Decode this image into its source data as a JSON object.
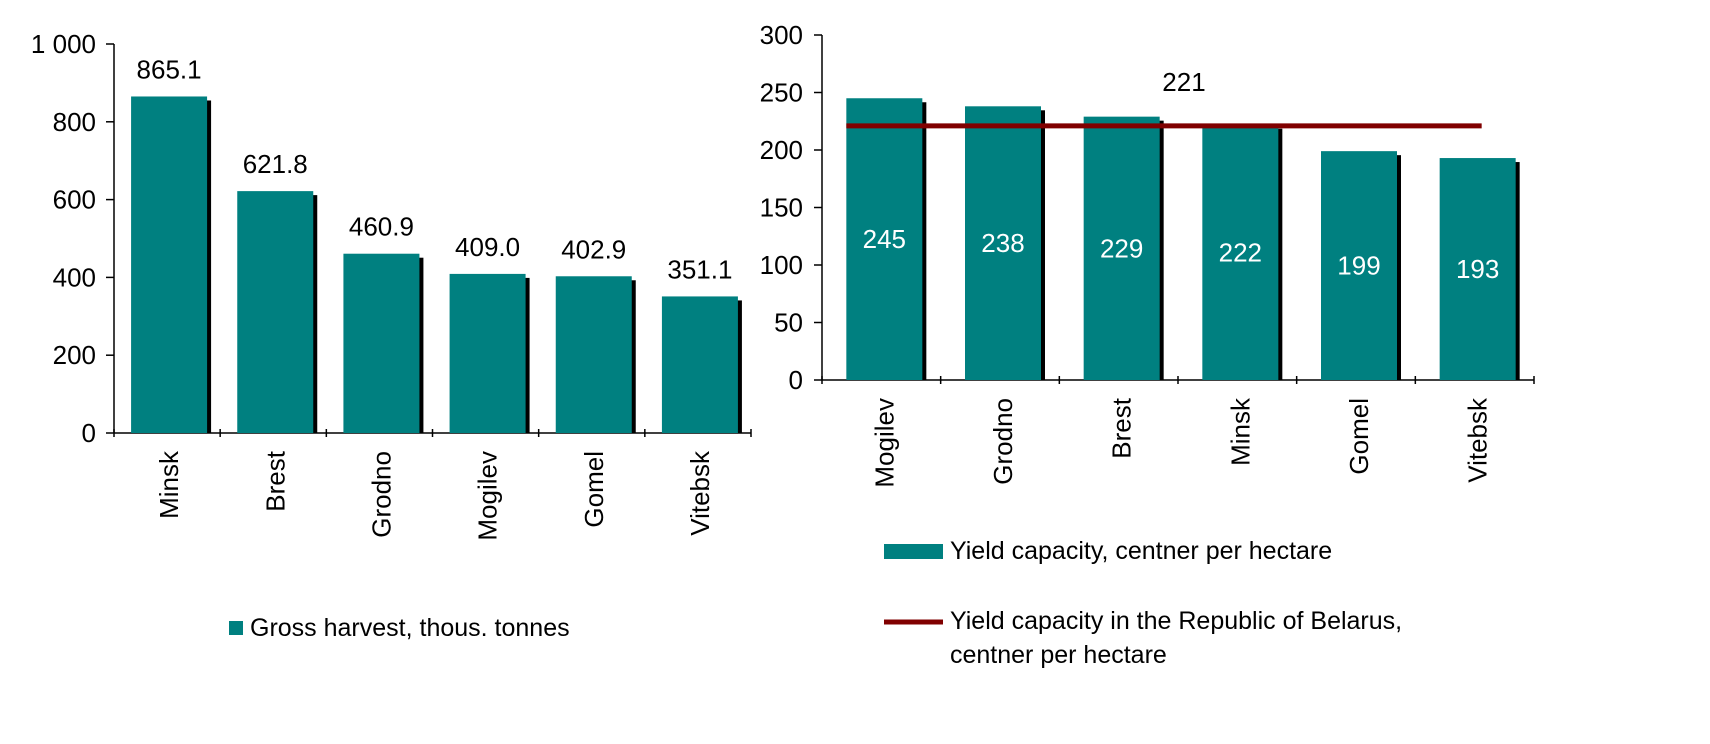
{
  "colors": {
    "bar": "#008080",
    "bar_shadow": "#000000",
    "line": "#800000",
    "axis": "#000000",
    "inner_label": "#ffffff"
  },
  "chart_data": [
    {
      "type": "bar",
      "categories": [
        "Minsk",
        "Brest",
        "Grodno",
        "Mogilev",
        "Gomel",
        "Vitebsk"
      ],
      "values": [
        865.1,
        621.8,
        460.9,
        409.0,
        402.9,
        351.1
      ],
      "value_labels": [
        "865.1",
        "621.8",
        "460.9",
        "409.0",
        "402.9",
        "351.1"
      ],
      "ylim": [
        0,
        1000
      ],
      "yticks": [
        0,
        200,
        400,
        600,
        800,
        1000
      ],
      "ytick_labels": [
        "0",
        "200",
        "400",
        "600",
        "800",
        "1 000"
      ],
      "series": [
        {
          "name": "Gross harvest, thous. tonnes"
        }
      ],
      "grid": false,
      "legend": "bottom"
    },
    {
      "type": "bar",
      "categories": [
        "Mogilev",
        "Grodno",
        "Brest",
        "Minsk",
        "Gomel",
        "Vitebsk"
      ],
      "values": [
        245,
        238,
        229,
        222,
        199,
        193
      ],
      "value_labels": [
        "245",
        "238",
        "229",
        "222",
        "199",
        "193"
      ],
      "ylim": [
        0,
        300
      ],
      "yticks": [
        0,
        50,
        100,
        150,
        200,
        250,
        300
      ],
      "ytick_labels": [
        "0",
        "50",
        "100",
        "150",
        "200",
        "250",
        "300"
      ],
      "series": [
        {
          "name": "Yield capacity, centner per hectare",
          "type": "bar"
        },
        {
          "name": "Yield capacity in the Republic of Belarus, centner per hectare",
          "type": "line",
          "value": 221,
          "value_label": "221"
        }
      ],
      "legend_lines": {
        "bar": [
          "Yield capacity, centner per hectare"
        ],
        "line": [
          "Yield capacity in the Republic of Belarus,",
          "centner per hectare"
        ]
      },
      "grid": false,
      "legend": "bottom"
    }
  ]
}
